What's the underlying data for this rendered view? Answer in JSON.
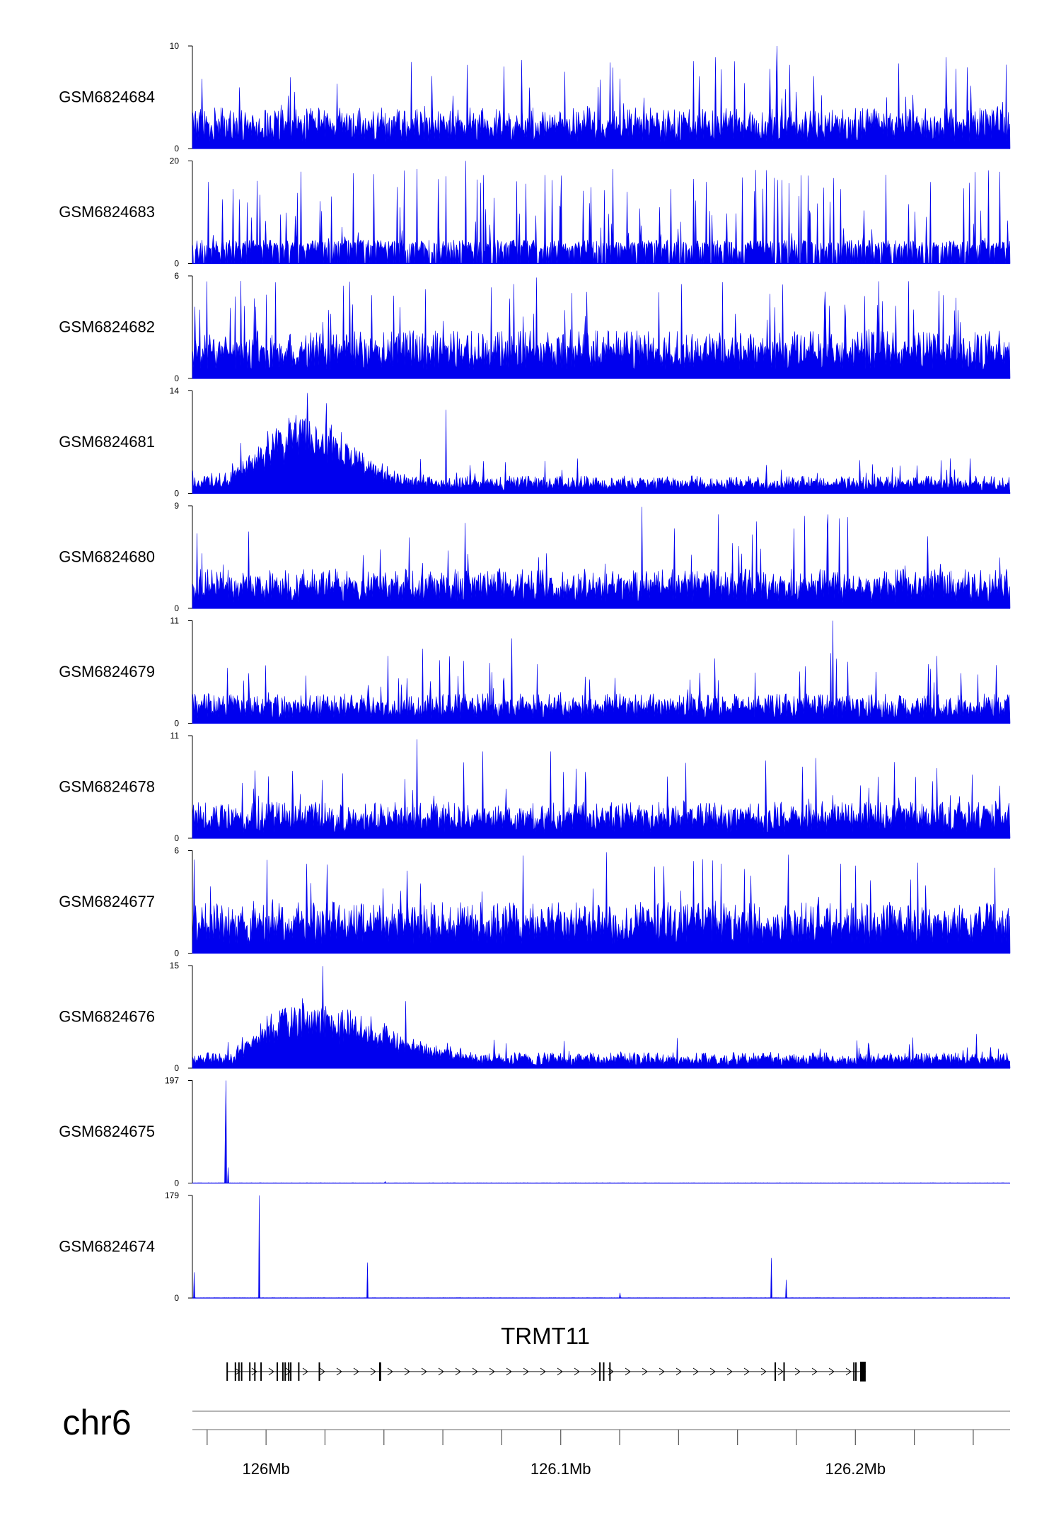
{
  "chart_data": {
    "type": "area",
    "title": "",
    "chromosome": "chr6",
    "x_axis": {
      "unit": "Mb",
      "range": [
        125.975,
        126.2525
      ],
      "ticks": [
        {
          "value": 126.0,
          "label": "126Mb"
        },
        {
          "value": 126.1,
          "label": "126.1Mb"
        },
        {
          "value": 126.2,
          "label": "126.2Mb"
        }
      ],
      "minor_ticks": [
        125.98,
        126.02,
        126.04,
        126.06,
        126.08,
        126.12,
        126.14,
        126.16,
        126.18,
        126.22,
        126.24
      ]
    },
    "tracks": [
      {
        "name": "GSM6824684",
        "ymin": 0,
        "ymax": 10,
        "ymin_label": "0",
        "ymax_label": "10",
        "pattern": "noise",
        "base": 1.6,
        "amp": 2.4,
        "spike_rate": 0.05,
        "spike_max": 7.5,
        "zero_gaps": false,
        "peaks": [
          {
            "x": 126.1734,
            "value": 10
          },
          {
            "x": 126.2308,
            "value": 8.9
          },
          {
            "x": 126.0807,
            "value": 8.0
          }
        ]
      },
      {
        "name": "GSM6824683",
        "ymin": 0,
        "ymax": 20,
        "ymin_label": "0",
        "ymax_label": "20",
        "pattern": "sparse",
        "base": 3.5,
        "amp": 2.5,
        "spike_rate": 0.09,
        "spike_max": 15,
        "zero_gaps": true,
        "peaks": [
          {
            "x": 126.0678,
            "value": 20
          },
          {
            "x": 126.0611,
            "value": 17
          }
        ]
      },
      {
        "name": "GSM6824682",
        "ymin": 0,
        "ymax": 6,
        "ymin_label": "0",
        "ymax_label": "6",
        "pattern": "noise",
        "base": 1.2,
        "amp": 1.6,
        "spike_rate": 0.07,
        "spike_max": 4.6,
        "zero_gaps": false,
        "peaks": [
          {
            "x": 126.0917,
            "value": 5.9
          },
          {
            "x": 126.0,
            "value": 4.9
          }
        ]
      },
      {
        "name": "GSM6824681",
        "ymin": 0,
        "ymax": 14,
        "ymin_label": "0",
        "ymax_label": "14",
        "pattern": "domain",
        "base": 1.0,
        "amp": 1.4,
        "spike_rate": 0.05,
        "spike_max": 3.8,
        "zero_gaps": false,
        "domain": {
          "start": 125.988,
          "end": 126.03,
          "center": 126.013,
          "height": 6.5
        },
        "peaks": [
          {
            "x": 126.0141,
            "value": 13.7
          },
          {
            "x": 126.0611,
            "value": 11.4
          },
          {
            "x": 126.0205,
            "value": 12.3
          }
        ]
      },
      {
        "name": "GSM6824680",
        "ymin": 0,
        "ymax": 9,
        "ymin_label": "0",
        "ymax_label": "9",
        "pattern": "noise",
        "base": 1.3,
        "amp": 2.2,
        "spike_rate": 0.05,
        "spike_max": 7.0,
        "zero_gaps": false,
        "peaks": [
          {
            "x": 126.1276,
            "value": 8.9
          },
          {
            "x": 126.1975,
            "value": 8.0
          }
        ]
      },
      {
        "name": "GSM6824679",
        "ymin": 0,
        "ymax": 11,
        "ymin_label": "0",
        "ymax_label": "11",
        "pattern": "noise",
        "base": 1.2,
        "amp": 2.0,
        "spike_rate": 0.05,
        "spike_max": 6.5,
        "zero_gaps": false,
        "peaks": [
          {
            "x": 126.1924,
            "value": 11
          },
          {
            "x": 126.0833,
            "value": 9.1
          },
          {
            "x": 126.0531,
            "value": 8.0
          }
        ]
      },
      {
        "name": "GSM6824678",
        "ymin": 0,
        "ymax": 11,
        "ymin_label": "0",
        "ymax_label": "11",
        "pattern": "noise",
        "base": 1.5,
        "amp": 2.4,
        "spike_rate": 0.05,
        "spike_max": 7.0,
        "zero_gaps": false,
        "peaks": [
          {
            "x": 126.0512,
            "value": 10.6
          },
          {
            "x": 126.0736,
            "value": 9.3
          },
          {
            "x": 126.0967,
            "value": 9.3
          },
          {
            "x": 126.1865,
            "value": 8.6
          }
        ]
      },
      {
        "name": "GSM6824677",
        "ymin": 0,
        "ymax": 6,
        "ymin_label": "0",
        "ymax_label": "6",
        "pattern": "noise",
        "base": 1.3,
        "amp": 1.7,
        "spike_rate": 0.06,
        "spike_max": 4.6,
        "zero_gaps": false,
        "peaks": [
          {
            "x": 126.1156,
            "value": 5.9
          },
          {
            "x": 126.1481,
            "value": 5.5
          }
        ]
      },
      {
        "name": "GSM6824676",
        "ymin": 0,
        "ymax": 15,
        "ymin_label": "0",
        "ymax_label": "15",
        "pattern": "domain",
        "base": 1.0,
        "amp": 1.3,
        "spike_rate": 0.04,
        "spike_max": 3.5,
        "zero_gaps": false,
        "domain": {
          "start": 125.99,
          "end": 126.04,
          "center": 126.012,
          "height": 6.0
        },
        "peaks": [
          {
            "x": 126.0192,
            "value": 14.9
          },
          {
            "x": 126.0474,
            "value": 9.8
          },
          {
            "x": 126.241,
            "value": 5.0
          }
        ]
      },
      {
        "name": "GSM6824675",
        "ymin": 0,
        "ymax": 197,
        "ymin_label": "0",
        "ymax_label": "197",
        "pattern": "flat",
        "base": 0.3,
        "amp": 0.9,
        "spike_rate": 0.0,
        "spike_max": 0,
        "zero_gaps": false,
        "peaks": [
          {
            "x": 125.9865,
            "value": 197
          },
          {
            "x": 125.9861,
            "value": 110
          },
          {
            "x": 125.9871,
            "value": 30
          },
          {
            "x": 126.0404,
            "value": 3
          }
        ]
      },
      {
        "name": "GSM6824674",
        "ymin": 0,
        "ymax": 179,
        "ymin_label": "0",
        "ymax_label": "179",
        "pattern": "flat",
        "base": 0.3,
        "amp": 0.9,
        "spike_rate": 0.0,
        "spike_max": 0,
        "zero_gaps": false,
        "peaks": [
          {
            "x": 125.9755,
            "value": 45
          },
          {
            "x": 125.9977,
            "value": 179
          },
          {
            "x": 126.0343,
            "value": 62
          },
          {
            "x": 126.1715,
            "value": 70
          },
          {
            "x": 126.1766,
            "value": 32
          },
          {
            "x": 126.1202,
            "value": 9
          },
          {
            "x": 126.2525,
            "value": 10
          }
        ]
      }
    ],
    "gene": {
      "name": "TRMT11",
      "strand": "+",
      "start": 125.987,
      "end": 126.2035,
      "exons": [
        125.9868,
        125.9896,
        125.9908,
        125.9917,
        125.9945,
        125.9962,
        125.9983,
        126.0038,
        126.0057,
        126.0065,
        126.0077,
        126.0084,
        126.0111,
        126.0181,
        126.0386,
        126.0388,
        126.1133,
        126.1146,
        126.1167,
        126.1728,
        126.1758,
        126.1995,
        126.2002
      ],
      "last_exon": [
        126.2016,
        126.2035
      ]
    }
  }
}
